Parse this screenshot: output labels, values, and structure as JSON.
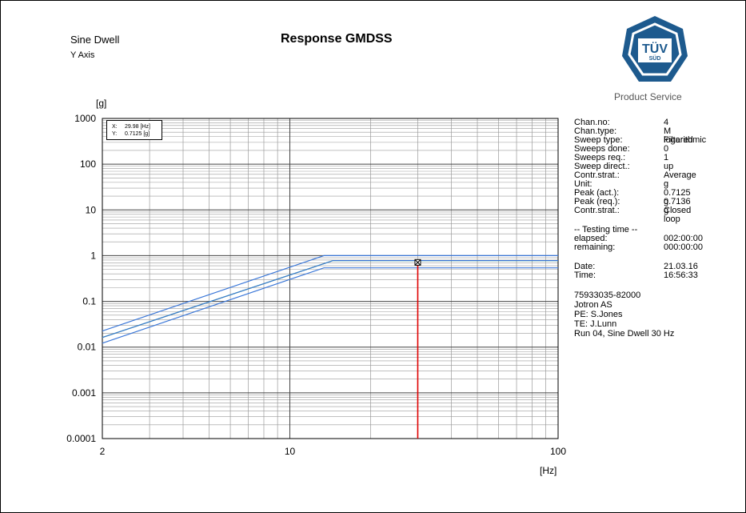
{
  "header": {
    "test_type": "Sine Dwell",
    "axis_name": "Y Axis",
    "title": "Response GMDSS"
  },
  "logo": {
    "text": "TÜV",
    "subtext": "SÜD",
    "caption": "Product Service",
    "color": "#1d5a8e"
  },
  "cursor": {
    "x_label": "X:",
    "x_value": "29.98 [Hz]",
    "y_label": "Y:",
    "y_value": "0.7125 [g]"
  },
  "info": {
    "params": [
      {
        "key": "Chan.no:",
        "value": "4"
      },
      {
        "key": "Chan.type:",
        "value": "M Filtered"
      },
      {
        "key": "Sweep type:",
        "value": "logarithmic"
      },
      {
        "key": "Sweeps done:",
        "value": "0"
      },
      {
        "key": "Sweeps req.:",
        "value": "1"
      },
      {
        "key": "Sweep direct.:",
        "value": "up"
      },
      {
        "key": "Contr.strat.:",
        "value": "Average"
      },
      {
        "key": "Unit:",
        "value": "g"
      },
      {
        "key": "Peak (act.):",
        "value": "0.7125 g"
      },
      {
        "key": "Peak (req.):",
        "value": "0.7136 g"
      },
      {
        "key": "Contr.strat.:",
        "value": "Closed loop"
      }
    ],
    "testing_header": "-- Testing time --",
    "testing": [
      {
        "key": "elapsed:",
        "value": "002:00:00"
      },
      {
        "key": "remaining:",
        "value": "000:00:00"
      }
    ],
    "datetime": [
      {
        "key": "Date:",
        "value": "21.03.16"
      },
      {
        "key": "Time:",
        "value": "16:56:33"
      }
    ],
    "notes": [
      "75933035-82000",
      "Jotron AS",
      "PE: S.Jones",
      "TE: J.Lunn",
      "Run 04, Sine Dwell 30 Hz"
    ]
  },
  "chart_data": {
    "type": "line",
    "title": "Response GMDSS",
    "xlabel": "[Hz]",
    "ylabel": "[g]",
    "x_scale": "log",
    "y_scale": "log",
    "xlim": [
      2,
      100
    ],
    "ylim": [
      0.0001,
      1000
    ],
    "x_ticks": [
      2,
      10,
      100
    ],
    "x_tick_labels": [
      "2",
      "10",
      "100"
    ],
    "y_ticks": [
      0.0001,
      0.001,
      0.01,
      0.1,
      1,
      10,
      100,
      1000
    ],
    "y_tick_labels": [
      "0.0001",
      "0.001",
      "0.01",
      "0.1",
      "1",
      "10",
      "100",
      "1000"
    ],
    "grid": true,
    "series": [
      {
        "color": "#3c78d8",
        "x": [
          2,
          13.4,
          100
        ],
        "y": [
          0.0225,
          1.0,
          1.0
        ]
      },
      {
        "color": "#3c78d8",
        "x": [
          2,
          13.4,
          100
        ],
        "y": [
          0.0122,
          0.54,
          0.54
        ]
      },
      {
        "color": "#2fbf2f",
        "x": [
          2,
          14.5,
          100
        ],
        "y": [
          0.0162,
          0.78,
          0.78
        ]
      },
      {
        "color": "#3c78d8",
        "x": [
          2,
          14.5,
          100
        ],
        "y": [
          0.0162,
          0.78,
          0.78
        ]
      }
    ],
    "marker": {
      "x": 29.98,
      "y": 0.7125,
      "color": "#e00000"
    }
  }
}
